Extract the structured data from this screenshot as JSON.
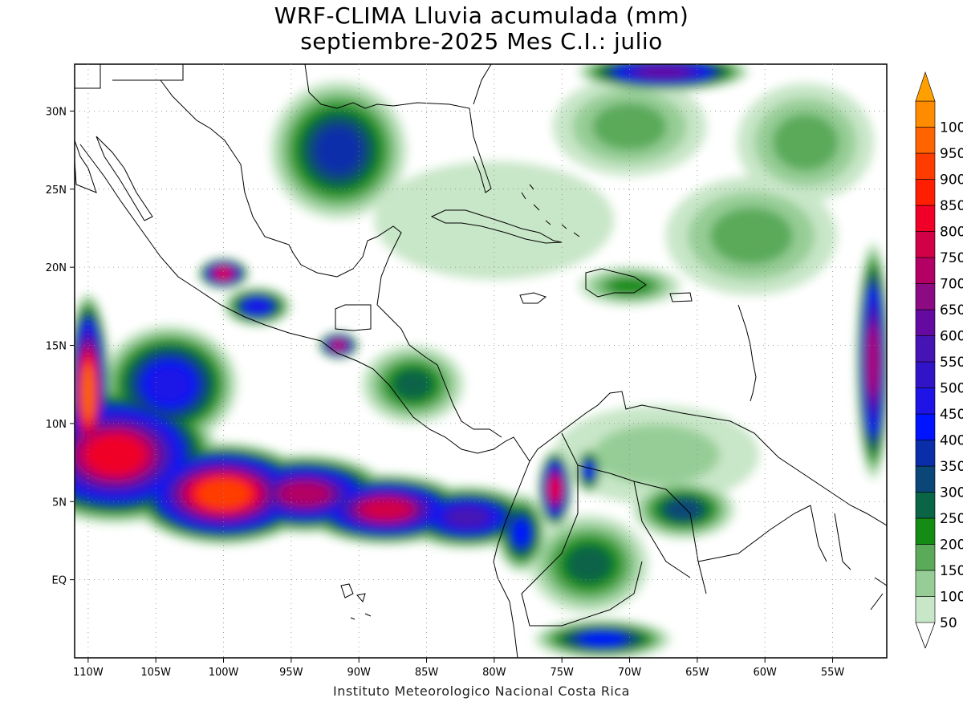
{
  "title": {
    "line1": "WRF-CLIMA Lluvia acumulada (mm)",
    "line2": "septiembre-2025 Mes C.I.: julio"
  },
  "credit": "Instituto Meteorologico Nacional Costa Rica",
  "map": {
    "lon_range": [
      -111,
      -51
    ],
    "lat_range": [
      -5,
      33
    ],
    "lon_ticks": [
      {
        "value": -110,
        "label": "110W"
      },
      {
        "value": -105,
        "label": "105W"
      },
      {
        "value": -100,
        "label": "100W"
      },
      {
        "value": -95,
        "label": "95W"
      },
      {
        "value": -90,
        "label": "90W"
      },
      {
        "value": -85,
        "label": "85W"
      },
      {
        "value": -80,
        "label": "80W"
      },
      {
        "value": -75,
        "label": "75W"
      },
      {
        "value": -70,
        "label": "70W"
      },
      {
        "value": -65,
        "label": "65W"
      },
      {
        "value": -60,
        "label": "60W"
      },
      {
        "value": -55,
        "label": "55W"
      }
    ],
    "lat_ticks": [
      {
        "value": 30,
        "label": "30N"
      },
      {
        "value": 25,
        "label": "25N"
      },
      {
        "value": 20,
        "label": "20N"
      },
      {
        "value": 15,
        "label": "15N"
      },
      {
        "value": 10,
        "label": "10N"
      },
      {
        "value": 5,
        "label": "5N"
      },
      {
        "value": 0,
        "label": "EQ"
      }
    ]
  },
  "legend": {
    "levels": [
      {
        "label": "50",
        "color": "#c8e6c8"
      },
      {
        "label": "100",
        "color": "#96cd96"
      },
      {
        "label": "150",
        "color": "#5aaa5a"
      },
      {
        "label": "200",
        "color": "#148c14"
      },
      {
        "label": "250",
        "color": "#0a6446"
      },
      {
        "label": "300",
        "color": "#0a4678"
      },
      {
        "label": "350",
        "color": "#0a2daa"
      },
      {
        "label": "400",
        "color": "#0014ff"
      },
      {
        "label": "450",
        "color": "#1e14e6"
      },
      {
        "label": "500",
        "color": "#3214c8"
      },
      {
        "label": "550",
        "color": "#4614b4"
      },
      {
        "label": "600",
        "color": "#640aa0"
      },
      {
        "label": "650",
        "color": "#8c0a82"
      },
      {
        "label": "700",
        "color": "#b40064"
      },
      {
        "label": "750",
        "color": "#d20046"
      },
      {
        "label": "800",
        "color": "#f00028"
      },
      {
        "label": "850",
        "color": "#ff1e00"
      },
      {
        "label": "900",
        "color": "#ff3c00"
      },
      {
        "label": "950",
        "color": "#ff6400"
      },
      {
        "label": "100",
        "color": "#ff8c00"
      }
    ],
    "top_arrow_color": "#ffa000"
  },
  "precip_blobs": [
    {
      "lon": -108,
      "lat": 8,
      "v": 800,
      "rx": 6.0,
      "ry": 3.5
    },
    {
      "lon": -104,
      "lat": 12.5,
      "v": 450,
      "rx": 4.0,
      "ry": 3.0
    },
    {
      "lon": -100,
      "lat": 5.5,
      "v": 900,
      "rx": 5.5,
      "ry": 2.6
    },
    {
      "lon": -94,
      "lat": 5.5,
      "v": 700,
      "rx": 5.0,
      "ry": 2.0
    },
    {
      "lon": -88,
      "lat": 4.5,
      "v": 750,
      "rx": 5.0,
      "ry": 1.8
    },
    {
      "lon": -82,
      "lat": 4.0,
      "v": 550,
      "rx": 4.0,
      "ry": 1.6
    },
    {
      "lon": -110,
      "lat": 12,
      "v": 950,
      "rx": 1.3,
      "ry": 5.0
    },
    {
      "lon": -52,
      "lat": 14,
      "v": 700,
      "rx": 1.0,
      "ry": 6.0
    },
    {
      "lon": -100,
      "lat": 19.6,
      "v": 800,
      "rx": 1.5,
      "ry": 0.8
    },
    {
      "lon": -97.5,
      "lat": 17.5,
      "v": 450,
      "rx": 2.0,
      "ry": 1.0
    },
    {
      "lon": -91.5,
      "lat": 15,
      "v": 750,
      "rx": 1.2,
      "ry": 0.7
    },
    {
      "lon": -75.5,
      "lat": 5.8,
      "v": 800,
      "rx": 1.0,
      "ry": 2.0
    },
    {
      "lon": -73,
      "lat": 7.0,
      "v": 400,
      "rx": 0.8,
      "ry": 1.2
    },
    {
      "lon": -78,
      "lat": 3.0,
      "v": 400,
      "rx": 1.5,
      "ry": 2.0
    },
    {
      "lon": -91.5,
      "lat": 27.5,
      "v": 350,
      "rx": 4.0,
      "ry": 3.5
    },
    {
      "lon": -73,
      "lat": 1.0,
      "v": 250,
      "rx": 3.5,
      "ry": 2.5
    },
    {
      "lon": -66,
      "lat": 4.5,
      "v": 300,
      "rx": 3.0,
      "ry": 1.5
    },
    {
      "lon": -72,
      "lat": -3.8,
      "v": 400,
      "rx": 4.0,
      "ry": 1.0
    },
    {
      "lon": -67.5,
      "lat": 32.5,
      "v": 600,
      "rx": 5.0,
      "ry": 1.0
    },
    {
      "lon": -86,
      "lat": 12.5,
      "v": 250,
      "rx": 3.0,
      "ry": 2.0
    },
    {
      "lon": -70,
      "lat": 18.8,
      "v": 200,
      "rx": 3.0,
      "ry": 1.0
    },
    {
      "lon": -61,
      "lat": 22,
      "v": 150,
      "rx": 5.0,
      "ry": 3.0
    },
    {
      "lon": -57,
      "lat": 28,
      "v": 150,
      "rx": 4.0,
      "ry": 3.0
    },
    {
      "lon": -70,
      "lat": 29,
      "v": 150,
      "rx": 4.5,
      "ry": 2.5
    },
    {
      "lon": -68,
      "lat": 8,
      "v": 100,
      "rx": 6.0,
      "ry": 2.5
    },
    {
      "lon": -80,
      "lat": 23,
      "v": 80,
      "rx": 7.0,
      "ry": 3.0
    }
  ]
}
